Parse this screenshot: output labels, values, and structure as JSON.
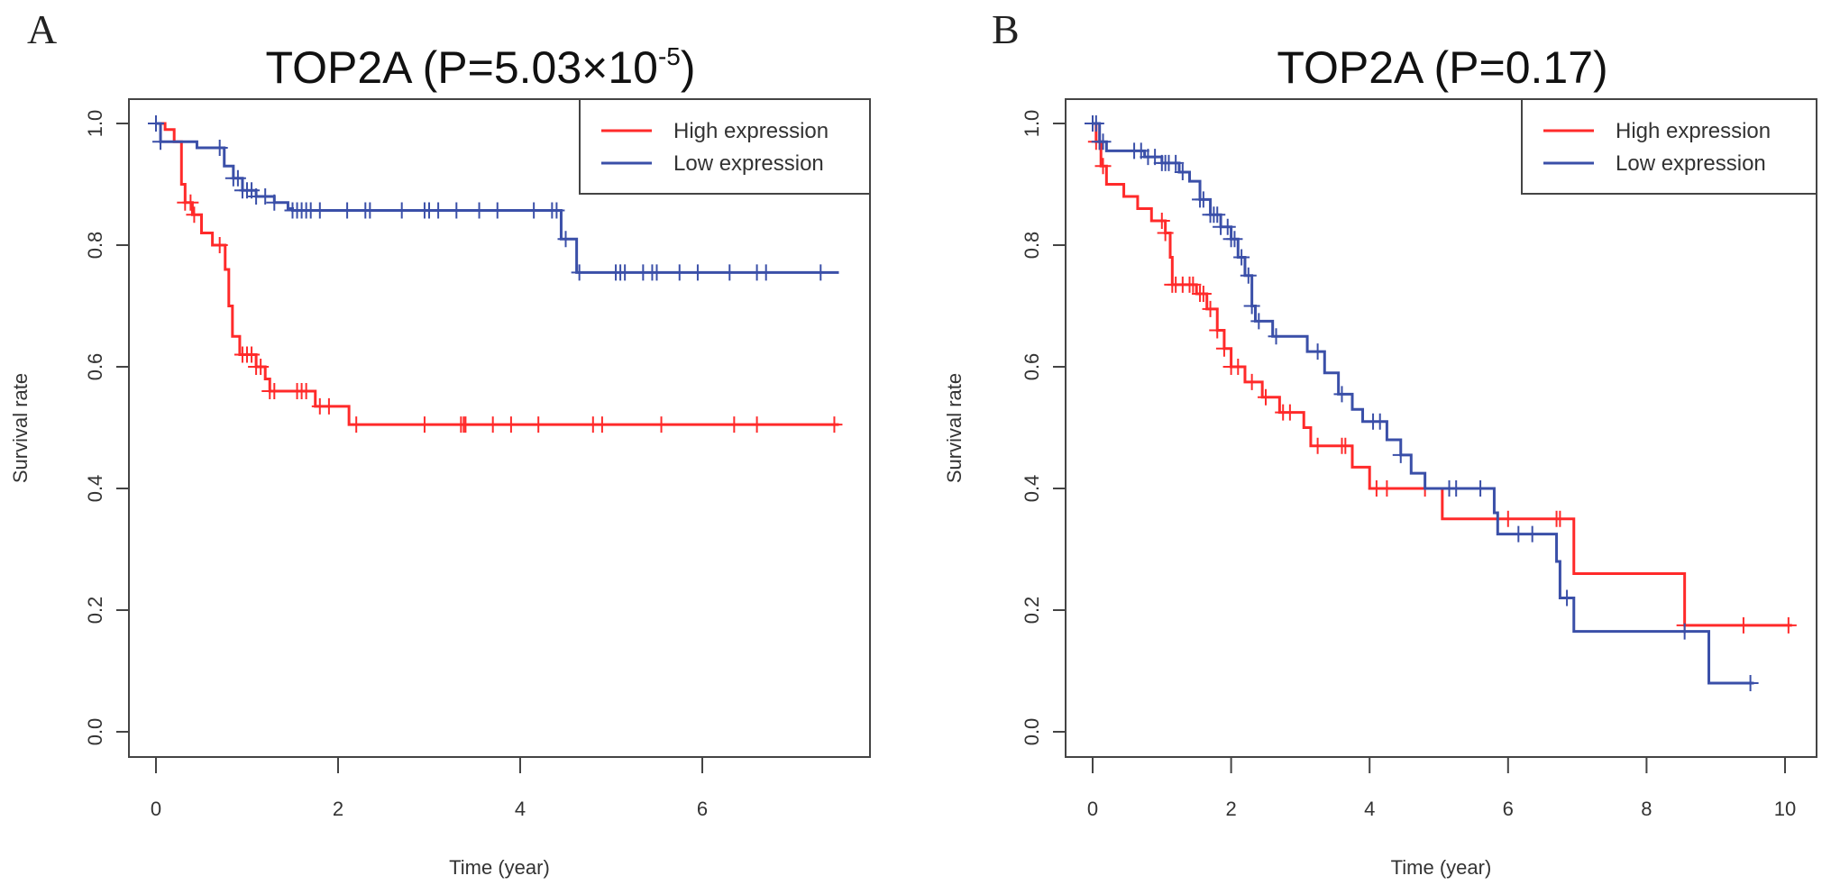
{
  "colors": {
    "high": "#ff2a2a",
    "low": "#3a4fa8",
    "axis": "#444444"
  },
  "chart_data": [
    {
      "type": "line",
      "panel": "A",
      "title": "TOP2A (P=5.03×10",
      "title_superscript": "-5",
      "title_close": ")",
      "xlabel": "Time (year)",
      "ylabel": "Survival rate",
      "xlim": [
        0,
        7.5
      ],
      "ylim": [
        0,
        1
      ],
      "xticks": [
        0,
        2,
        4,
        6
      ],
      "yticks": [
        0.0,
        0.2,
        0.4,
        0.6,
        0.8,
        1.0
      ],
      "ytick_labels": [
        "0.0",
        "0.2",
        "0.4",
        "0.6",
        "0.8",
        "1.0"
      ],
      "grid": false,
      "legend_position": "top-right",
      "legend": [
        "High expression",
        "Low expression"
      ],
      "series": [
        {
          "name": "High expression",
          "step": [
            [
              0,
              1.0
            ],
            [
              0.1,
              0.99
            ],
            [
              0.2,
              0.97
            ],
            [
              0.28,
              0.9
            ],
            [
              0.32,
              0.87
            ],
            [
              0.4,
              0.85
            ],
            [
              0.5,
              0.82
            ],
            [
              0.62,
              0.8
            ],
            [
              0.76,
              0.76
            ],
            [
              0.8,
              0.7
            ],
            [
              0.84,
              0.65
            ],
            [
              0.92,
              0.62
            ],
            [
              1.1,
              0.6
            ],
            [
              1.2,
              0.58
            ],
            [
              1.25,
              0.56
            ],
            [
              1.75,
              0.535
            ],
            [
              2.12,
              0.505
            ],
            [
              7.5,
              0.505
            ]
          ],
          "censored": [
            0.32,
            0.38,
            0.42,
            0.7,
            0.95,
            1.0,
            1.05,
            1.1,
            1.15,
            1.25,
            1.3,
            1.55,
            1.6,
            1.65,
            1.8,
            1.9,
            2.2,
            2.95,
            3.35,
            3.38,
            3.4,
            3.7,
            3.9,
            4.2,
            4.8,
            4.9,
            5.55,
            6.35,
            6.6,
            7.45
          ]
        },
        {
          "name": "Low expression",
          "step": [
            [
              0,
              1.0
            ],
            [
              0.05,
              0.97
            ],
            [
              0.45,
              0.96
            ],
            [
              0.75,
              0.93
            ],
            [
              0.85,
              0.91
            ],
            [
              0.95,
              0.89
            ],
            [
              1.1,
              0.88
            ],
            [
              1.3,
              0.87
            ],
            [
              1.45,
              0.86
            ],
            [
              1.5,
              0.857
            ],
            [
              4.45,
              0.81
            ],
            [
              4.62,
              0.755
            ],
            [
              7.5,
              0.755
            ]
          ],
          "censored": [
            0.0,
            0.05,
            0.7,
            0.85,
            0.9,
            0.95,
            1.0,
            1.05,
            1.1,
            1.2,
            1.3,
            1.5,
            1.55,
            1.6,
            1.65,
            1.7,
            1.8,
            2.1,
            2.3,
            2.35,
            2.7,
            2.95,
            3.0,
            3.1,
            3.3,
            3.55,
            3.75,
            4.15,
            4.35,
            4.4,
            4.5,
            4.65,
            5.05,
            5.1,
            5.15,
            5.35,
            5.45,
            5.5,
            5.75,
            5.95,
            6.3,
            6.6,
            6.7,
            7.3
          ]
        }
      ]
    },
    {
      "type": "line",
      "panel": "B",
      "title": "TOP2A (P=0.17)",
      "xlabel": "Time (year)",
      "ylabel": "Survival rate",
      "xlim": [
        0,
        10.2
      ],
      "ylim": [
        0,
        1
      ],
      "xticks": [
        0,
        2,
        4,
        6,
        8,
        10
      ],
      "yticks": [
        0.0,
        0.2,
        0.4,
        0.6,
        0.8,
        1.0
      ],
      "ytick_labels": [
        "0.0",
        "0.2",
        "0.4",
        "0.6",
        "0.8",
        "1.0"
      ],
      "grid": false,
      "legend_position": "top-right",
      "legend": [
        "High expression",
        "Low expression"
      ],
      "series": [
        {
          "name": "High expression",
          "step": [
            [
              0,
              1.0
            ],
            [
              0.05,
              0.97
            ],
            [
              0.12,
              0.93
            ],
            [
              0.2,
              0.9
            ],
            [
              0.45,
              0.88
            ],
            [
              0.65,
              0.86
            ],
            [
              0.85,
              0.84
            ],
            [
              1.05,
              0.82
            ],
            [
              1.12,
              0.78
            ],
            [
              1.15,
              0.735
            ],
            [
              1.5,
              0.72
            ],
            [
              1.65,
              0.695
            ],
            [
              1.8,
              0.66
            ],
            [
              1.9,
              0.63
            ],
            [
              2.0,
              0.6
            ],
            [
              2.2,
              0.575
            ],
            [
              2.45,
              0.55
            ],
            [
              2.7,
              0.525
            ],
            [
              3.05,
              0.5
            ],
            [
              3.15,
              0.47
            ],
            [
              3.75,
              0.435
            ],
            [
              4.0,
              0.4
            ],
            [
              5.05,
              0.35
            ],
            [
              6.95,
              0.26
            ],
            [
              8.55,
              0.175
            ],
            [
              10.1,
              0.175
            ]
          ],
          "censored": [
            0.05,
            0.1,
            0.15,
            1.0,
            1.05,
            1.15,
            1.2,
            1.3,
            1.4,
            1.45,
            1.55,
            1.6,
            1.7,
            1.8,
            1.9,
            2.0,
            2.1,
            2.3,
            2.5,
            2.75,
            2.85,
            3.25,
            3.6,
            3.65,
            4.1,
            4.25,
            4.8,
            6.0,
            6.7,
            6.75,
            8.55,
            9.4,
            10.05
          ]
        },
        {
          "name": "Low expression",
          "step": [
            [
              0,
              1.0
            ],
            [
              0.1,
              0.97
            ],
            [
              0.2,
              0.955
            ],
            [
              0.75,
              0.945
            ],
            [
              1.0,
              0.935
            ],
            [
              1.25,
              0.92
            ],
            [
              1.4,
              0.905
            ],
            [
              1.55,
              0.875
            ],
            [
              1.7,
              0.85
            ],
            [
              1.85,
              0.83
            ],
            [
              2.0,
              0.81
            ],
            [
              2.1,
              0.78
            ],
            [
              2.2,
              0.75
            ],
            [
              2.3,
              0.7
            ],
            [
              2.35,
              0.675
            ],
            [
              2.6,
              0.65
            ],
            [
              3.1,
              0.625
            ],
            [
              3.35,
              0.59
            ],
            [
              3.55,
              0.555
            ],
            [
              3.75,
              0.53
            ],
            [
              3.9,
              0.51
            ],
            [
              4.25,
              0.48
            ],
            [
              4.45,
              0.455
            ],
            [
              4.6,
              0.425
            ],
            [
              4.8,
              0.4
            ],
            [
              5.8,
              0.36
            ],
            [
              5.85,
              0.325
            ],
            [
              6.7,
              0.28
            ],
            [
              6.75,
              0.22
            ],
            [
              6.95,
              0.165
            ],
            [
              8.9,
              0.08
            ],
            [
              9.55,
              0.08
            ]
          ],
          "censored": [
            0.0,
            0.05,
            0.1,
            0.15,
            0.6,
            0.7,
            0.8,
            0.9,
            1.0,
            1.05,
            1.1,
            1.2,
            1.3,
            1.55,
            1.6,
            1.7,
            1.75,
            1.8,
            1.85,
            1.95,
            2.0,
            2.05,
            2.15,
            2.25,
            2.3,
            2.4,
            2.65,
            3.25,
            3.6,
            4.05,
            4.15,
            4.45,
            5.15,
            5.25,
            5.6,
            6.15,
            6.35,
            6.85,
            8.55,
            9.5
          ]
        }
      ]
    }
  ]
}
